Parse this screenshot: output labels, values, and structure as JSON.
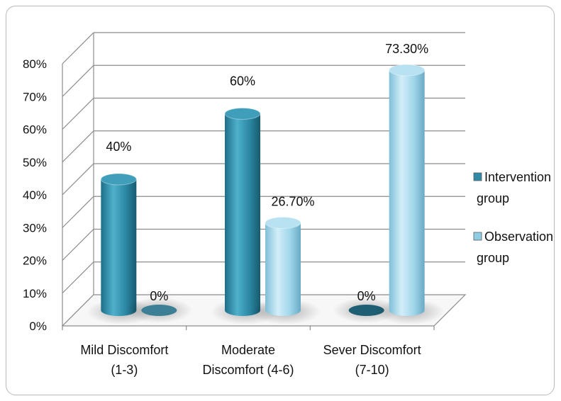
{
  "chart_data": {
    "type": "bar",
    "style": "3d-cylinder",
    "categories": [
      [
        "Mild Discomfort",
        "(1-3)"
      ],
      [
        "Moderate",
        "Discomfort (4-6)"
      ],
      [
        "Sever Discomfort",
        "(7-10)"
      ]
    ],
    "series": [
      {
        "name": [
          "Intervention",
          "group"
        ],
        "values": [
          40,
          60,
          0
        ],
        "labels": [
          "40%",
          "60%",
          "0%"
        ],
        "color": "#2e8aa6"
      },
      {
        "name": [
          "Observation",
          "group"
        ],
        "values": [
          0,
          26.7,
          73.3
        ],
        "labels": [
          "0%",
          "26.70%",
          "73.30%"
        ],
        "color": "#8fcde4"
      }
    ],
    "yticks": [
      "0%",
      "10%",
      "20%",
      "30%",
      "40%",
      "50%",
      "60%",
      "70%",
      "80%"
    ],
    "ylim": [
      0,
      80
    ],
    "grid": true,
    "legend": "right"
  }
}
